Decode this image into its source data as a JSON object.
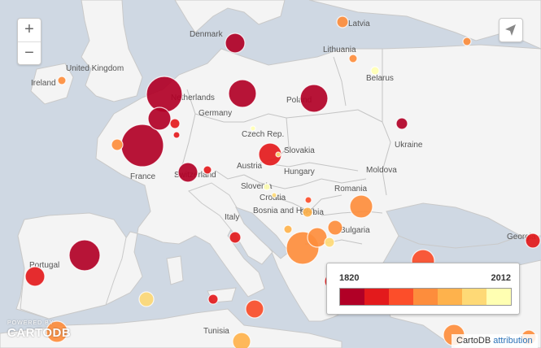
{
  "map": {
    "labels": [
      {
        "text": "Denmark",
        "name": "label-denmark"
      },
      {
        "text": "Latvia",
        "name": "label-latvia"
      },
      {
        "text": "Lithuania",
        "name": "label-lithuania"
      },
      {
        "text": "United Kingdom",
        "name": "label-united-kingdom"
      },
      {
        "text": "Ireland",
        "name": "label-ireland"
      },
      {
        "text": "Belarus",
        "name": "label-belarus"
      },
      {
        "text": "Netherlands",
        "name": "label-netherlands"
      },
      {
        "text": "Germany",
        "name": "label-germany"
      },
      {
        "text": "Poland",
        "name": "label-poland"
      },
      {
        "text": "Czech Rep.",
        "name": "label-czech-rep"
      },
      {
        "text": "Ukraine",
        "name": "label-ukraine"
      },
      {
        "text": "Slovakia",
        "name": "label-slovakia"
      },
      {
        "text": "Austria",
        "name": "label-austria"
      },
      {
        "text": "Hungary",
        "name": "label-hungary"
      },
      {
        "text": "France",
        "name": "label-france"
      },
      {
        "text": "Switzerland",
        "name": "label-switzerland"
      },
      {
        "text": "Moldova",
        "name": "label-moldova"
      },
      {
        "text": "Romania",
        "name": "label-romania"
      },
      {
        "text": "Slovenia",
        "name": "label-slovenia"
      },
      {
        "text": "Croatia",
        "name": "label-croatia"
      },
      {
        "text": "Bosnia and Herz.",
        "name": "label-bosnia"
      },
      {
        "text": "Italy",
        "name": "label-italy"
      },
      {
        "text": "Serbia",
        "name": "label-serbia"
      },
      {
        "text": "Bulgaria",
        "name": "label-bulgaria"
      },
      {
        "text": "Portugal",
        "name": "label-portugal"
      },
      {
        "text": "Georgia",
        "name": "label-georgia"
      },
      {
        "text": "Tunisia",
        "name": "label-tunisia"
      }
    ],
    "markers_visible": 48
  },
  "controls": {
    "zoom_in": "+",
    "zoom_out": "−"
  },
  "legend": {
    "min": "1820",
    "max": "2012",
    "colors": [
      "#b10026",
      "#e31a1c",
      "#fc4e2a",
      "#fd8d3c",
      "#feb24c",
      "#fed976",
      "#ffffb2"
    ]
  },
  "attribution": {
    "prefix": "CartoDB",
    "link": "attribution"
  },
  "powered": {
    "line1": "POWERED BY",
    "line2": "CARTODB"
  }
}
